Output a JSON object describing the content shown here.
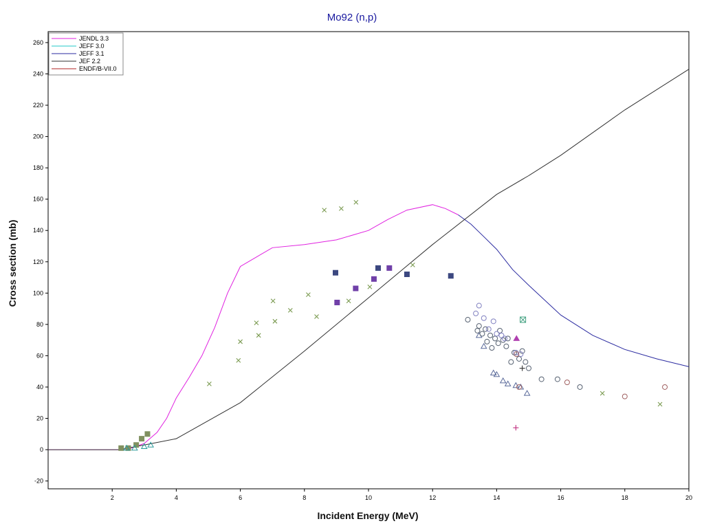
{
  "chart_data": {
    "type": "scatter",
    "title": "Mo92 (n,p)",
    "xlabel": "Incident Energy (MeV)",
    "ylabel": "Cross section (mb)",
    "xlim": [
      0,
      20
    ],
    "ylim": [
      -25,
      267
    ],
    "xticks": [
      "2",
      "4",
      "6",
      "8",
      "10",
      "12",
      "14",
      "16",
      "18",
      "20"
    ],
    "yticks": [
      "-20",
      "0",
      "20",
      "40",
      "60",
      "80",
      "100",
      "120",
      "140",
      "160",
      "180",
      "200",
      "220",
      "240",
      "260"
    ],
    "grid": true,
    "legend_position": "top-left",
    "series": [
      {
        "name": "JENDL 3.3",
        "color": "#e020e0",
        "x": [
          0,
          2.2,
          2.6,
          3.0,
          3.4,
          3.7,
          4.0,
          4.4,
          4.8,
          5.2,
          5.6,
          6.0,
          6.5,
          7.0,
          8.0,
          9.0,
          10.0,
          10.6,
          11.2,
          12.0,
          12.4,
          12.8
        ],
        "y": [
          0,
          0,
          1,
          4,
          11,
          20,
          33,
          46,
          60,
          78,
          100,
          117,
          123,
          129,
          131,
          134,
          140,
          147,
          153,
          156.5,
          154,
          150
        ]
      },
      {
        "name": "JEFF 3.0",
        "color": "#20c8c8",
        "x": [],
        "y": []
      },
      {
        "name": "JEFF 3.1",
        "color": "#2a2aa0",
        "x": [
          12.8,
          13.2,
          13.6,
          14.0,
          14.5,
          15.0,
          16.0,
          17.0,
          18.0,
          19.0,
          20.0
        ],
        "y": [
          150,
          144,
          136,
          128,
          115,
          105,
          86,
          73,
          64,
          58,
          53
        ]
      },
      {
        "name": "JEF 2.2",
        "color": "#303030",
        "x": [
          0,
          2.2,
          3.0,
          4.0,
          6.0,
          8.0,
          10.0,
          12.0,
          14.0,
          15.0,
          16.0,
          18.0,
          20.0
        ],
        "y": [
          0,
          0,
          3,
          7,
          30,
          63,
          97,
          131,
          163,
          175,
          188,
          217,
          243
        ]
      },
      {
        "name": "ENDF/B-VII.0",
        "color": "#b02020",
        "x": [],
        "y": []
      }
    ],
    "experimental": [
      {
        "marker": "cross",
        "color": "#7a9a50",
        "x": [
          5.03,
          5.94,
          6.0,
          6.5,
          6.57,
          7.02,
          7.08,
          7.56,
          8.12,
          8.38,
          8.62,
          9.15,
          9.38,
          9.61,
          10.04,
          11.38,
          17.3,
          19.1
        ],
        "y": [
          42,
          57,
          69,
          81,
          73,
          95,
          82,
          89,
          99,
          85,
          153,
          154,
          95,
          158,
          104,
          118,
          36,
          29
        ]
      },
      {
        "marker": "square",
        "color": "#3c4880",
        "x": [
          8.97,
          10.3,
          11.2,
          12.57
        ],
        "y": [
          113,
          116,
          112,
          111
        ]
      },
      {
        "marker": "square",
        "color": "#7040a8",
        "x": [
          9.02,
          9.6,
          10.17,
          10.65
        ],
        "y": [
          94,
          103,
          109,
          116
        ]
      },
      {
        "marker": "square",
        "color": "#809060",
        "x": [
          2.28,
          2.5,
          2.75,
          2.92,
          3.1
        ],
        "y": [
          1,
          1,
          3,
          7,
          10
        ]
      },
      {
        "marker": "triangle",
        "color": "#2a9a9a",
        "x": [
          2.45,
          2.7,
          3.0,
          3.2
        ],
        "y": [
          1,
          1,
          2,
          3
        ]
      },
      {
        "marker": "triangle",
        "color": "#5a6a9a",
        "x": [
          13.45,
          13.6,
          13.9,
          14.0,
          14.2,
          14.35,
          14.6,
          14.75,
          14.95
        ],
        "y": [
          73,
          66,
          49,
          48,
          44,
          42,
          41,
          40,
          36
        ]
      },
      {
        "marker": "circle-open",
        "color": "#556070",
        "x": [
          13.1,
          13.4,
          13.45,
          13.55,
          13.65,
          13.7,
          13.8,
          13.85,
          13.95,
          14.05,
          14.1,
          14.2,
          14.3,
          14.35,
          14.45,
          14.55,
          14.7,
          14.8,
          14.9,
          15.0,
          15.4,
          15.9,
          16.6
        ],
        "y": [
          83,
          76,
          79,
          74,
          77,
          69,
          73,
          65,
          71,
          68,
          76,
          70,
          66,
          71,
          56,
          62,
          58,
          63,
          56,
          52,
          45,
          45,
          40
        ]
      },
      {
        "marker": "circle-open",
        "color": "#8080c0",
        "x": [
          13.35,
          13.45,
          13.6,
          13.75,
          13.9,
          14.0,
          14.15,
          14.25,
          14.6,
          14.75
        ],
        "y": [
          87,
          92,
          84,
          77,
          82,
          74,
          73,
          71,
          62,
          61
        ]
      },
      {
        "marker": "circle-open",
        "color": "#a06060",
        "x": [
          14.62,
          14.7,
          16.2,
          18.0,
          19.25
        ],
        "y": [
          61,
          40,
          43,
          34,
          40
        ]
      },
      {
        "marker": "plus",
        "color": "#c03080",
        "x": [
          14.6
        ],
        "y": [
          14
        ]
      },
      {
        "marker": "plus",
        "color": "#303030",
        "x": [
          14.8
        ],
        "y": [
          52
        ]
      },
      {
        "marker": "triangle-filled",
        "color": "#b040b0",
        "x": [
          14.62
        ],
        "y": [
          71
        ]
      },
      {
        "marker": "square-cross",
        "color": "#40a080",
        "x": [
          14.82
        ],
        "y": [
          83
        ]
      }
    ]
  }
}
